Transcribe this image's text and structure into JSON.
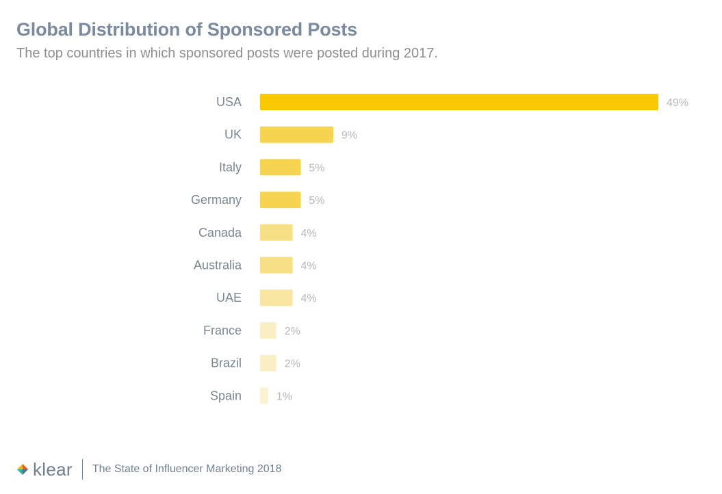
{
  "header": {
    "title": "Global Distribution of Sponsored Posts",
    "subtitle": "The top countries in which sponsored posts were posted during 2017."
  },
  "chart_data": {
    "type": "bar",
    "orientation": "horizontal",
    "categories": [
      "USA",
      "UK",
      "Italy",
      "Germany",
      "Canada",
      "Australia",
      "UAE",
      "France",
      "Brazil",
      "Spain"
    ],
    "values": [
      49,
      9,
      5,
      5,
      4,
      4,
      4,
      2,
      2,
      1
    ],
    "value_labels": [
      "49%",
      "9%",
      "5%",
      "5%",
      "4%",
      "4%",
      "4%",
      "2%",
      "2%",
      "1%"
    ],
    "colors": [
      "#f9c800",
      "#f6d44f",
      "#f6d44f",
      "#f6d44f",
      "#f7df85",
      "#f7df85",
      "#f8e6a2",
      "#faefc4",
      "#faefc4",
      "#fbf2d1"
    ],
    "label_color": "#7a8696",
    "value_label_color": "#b8b8b8",
    "grid": false,
    "legend": "none"
  },
  "footer": {
    "brand": "klear",
    "text": "The State of Influencer Marketing 2018"
  }
}
